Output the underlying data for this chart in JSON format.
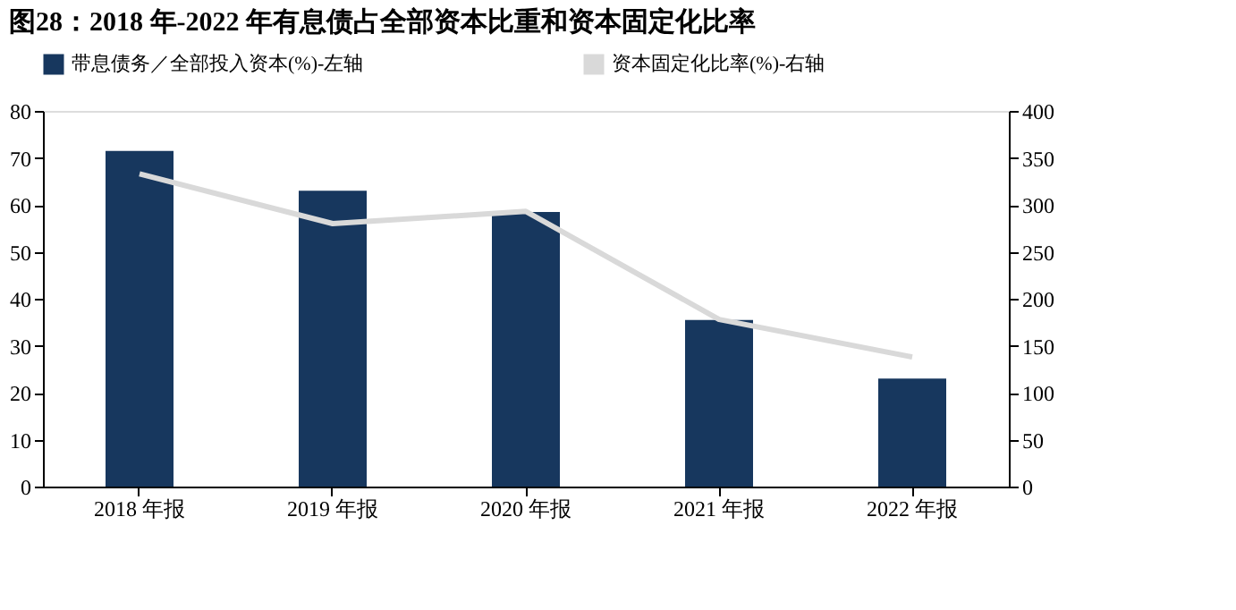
{
  "chart_data": {
    "type": "bar",
    "title": "图28：2018 年-2022 年有息债占全部资本比重和资本固定化比率",
    "categories": [
      "2018 年报",
      "2019 年报",
      "2020 年报",
      "2021 年报",
      "2022 年报"
    ],
    "series": [
      {
        "name": "带息债务／全部投入资本(%)-左轴",
        "color": "#17375e",
        "values": [
          71.5,
          63,
          58.5,
          35.5,
          23
        ]
      },
      {
        "name": "资本固定化比率(%)-右轴",
        "color": "#d9d9d9",
        "type": "line",
        "axis": "y2",
        "values": [
          333,
          280,
          293,
          178,
          138
        ]
      }
    ],
    "ylim": [
      0,
      80
    ],
    "yticks": [
      0,
      10,
      20,
      30,
      40,
      50,
      60,
      70,
      80
    ],
    "y2lim": [
      0,
      400
    ],
    "y2ticks": [
      0,
      50,
      100,
      150,
      200,
      250,
      300,
      350,
      400
    ],
    "grid": false,
    "legend": "top",
    "line_style": "solid",
    "marker": "none"
  }
}
